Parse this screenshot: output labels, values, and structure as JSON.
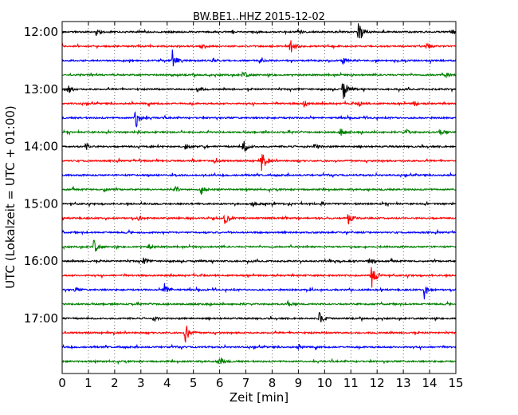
{
  "chart_data": {
    "type": "line",
    "title": "BW.BE1..HHZ 2015-12-02",
    "xlabel": "Zeit  [min]",
    "ylabel": "UTC (Lokalzeit = UTC + 01:00)",
    "xlim": [
      0,
      15
    ],
    "xticks": [
      0,
      1,
      2,
      3,
      4,
      5,
      6,
      7,
      8,
      9,
      10,
      11,
      12,
      13,
      14,
      15
    ],
    "ytick_labels": [
      "12:00",
      "13:00",
      "14:00",
      "15:00",
      "16:00",
      "17:00"
    ],
    "trace_interval_min": 15,
    "grid": "vertical dotted at each minute",
    "trace_colors": [
      "#000000",
      "#ff0000",
      "#0000ff",
      "#008000"
    ],
    "traces": [
      {
        "start": "12:00",
        "events": [
          {
            "t": 11.3,
            "amp": 1.0
          },
          {
            "t": 1.3,
            "amp": 0.25
          },
          {
            "t": 9.0,
            "amp": 0.2
          },
          {
            "t": 14.8,
            "amp": 0.3
          }
        ]
      },
      {
        "start": "12:15",
        "events": [
          {
            "t": 8.7,
            "amp": 0.55
          },
          {
            "t": 5.3,
            "amp": 0.2
          },
          {
            "t": 13.9,
            "amp": 0.25
          }
        ]
      },
      {
        "start": "12:30",
        "events": [
          {
            "t": 4.2,
            "amp": 0.8
          },
          {
            "t": 5.7,
            "amp": 0.2
          },
          {
            "t": 7.5,
            "amp": 0.25
          },
          {
            "t": 10.7,
            "amp": 0.25
          }
        ]
      },
      {
        "start": "12:45",
        "events": [
          {
            "t": 6.9,
            "amp": 0.3
          },
          {
            "t": 14.6,
            "amp": 0.2
          }
        ]
      },
      {
        "start": "13:00",
        "events": [
          {
            "t": 10.7,
            "amp": 1.0
          },
          {
            "t": 0.2,
            "amp": 0.4
          },
          {
            "t": 5.1,
            "amp": 0.3
          }
        ]
      },
      {
        "start": "13:15",
        "events": [
          {
            "t": 9.2,
            "amp": 0.3
          },
          {
            "t": 11.3,
            "amp": 0.2
          },
          {
            "t": 13.4,
            "amp": 0.2
          }
        ]
      },
      {
        "start": "13:30",
        "events": [
          {
            "t": 2.8,
            "amp": 0.95
          }
        ]
      },
      {
        "start": "13:45",
        "events": [
          {
            "t": 10.6,
            "amp": 0.3
          },
          {
            "t": 13.1,
            "amp": 0.2
          },
          {
            "t": 14.4,
            "amp": 0.25
          }
        ]
      },
      {
        "start": "14:00",
        "events": [
          {
            "t": 6.9,
            "amp": 0.6
          },
          {
            "t": 0.9,
            "amp": 0.3
          },
          {
            "t": 4.7,
            "amp": 0.25
          },
          {
            "t": 9.6,
            "amp": 0.3
          }
        ]
      },
      {
        "start": "14:15",
        "events": [
          {
            "t": 7.6,
            "amp": 1.0
          },
          {
            "t": 5.8,
            "amp": 0.2
          }
        ]
      },
      {
        "start": "14:30",
        "events": []
      },
      {
        "start": "14:45",
        "events": [
          {
            "t": 5.3,
            "amp": 0.35
          },
          {
            "t": 4.3,
            "amp": 0.2
          },
          {
            "t": 1.6,
            "amp": 0.15
          }
        ]
      },
      {
        "start": "15:00",
        "events": [
          {
            "t": 7.2,
            "amp": 0.35
          },
          {
            "t": 9.9,
            "amp": 0.15
          }
        ]
      },
      {
        "start": "15:15",
        "events": [
          {
            "t": 6.2,
            "amp": 0.45
          },
          {
            "t": 10.9,
            "amp": 0.55
          },
          {
            "t": 2.9,
            "amp": 0.15
          }
        ]
      },
      {
        "start": "15:30",
        "events": []
      },
      {
        "start": "15:45",
        "events": [
          {
            "t": 1.2,
            "amp": 0.55
          },
          {
            "t": 3.3,
            "amp": 0.2
          }
        ]
      },
      {
        "start": "16:00",
        "events": [
          {
            "t": 3.1,
            "amp": 0.25
          },
          {
            "t": 11.7,
            "amp": 0.25
          }
        ]
      },
      {
        "start": "16:15",
        "events": [
          {
            "t": 11.8,
            "amp": 1.3
          }
        ]
      },
      {
        "start": "16:30",
        "events": [
          {
            "t": 3.9,
            "amp": 0.6
          },
          {
            "t": 13.8,
            "amp": 0.6
          },
          {
            "t": 0.5,
            "amp": 0.15
          }
        ]
      },
      {
        "start": "16:45",
        "events": [
          {
            "t": 8.6,
            "amp": 0.2
          }
        ]
      },
      {
        "start": "17:00",
        "events": [
          {
            "t": 9.8,
            "amp": 0.5
          },
          {
            "t": 3.5,
            "amp": 0.2
          }
        ]
      },
      {
        "start": "17:15",
        "events": [
          {
            "t": 4.7,
            "amp": 0.8
          }
        ]
      },
      {
        "start": "17:30",
        "events": [
          {
            "t": 9.0,
            "amp": 0.15
          }
        ]
      },
      {
        "start": "17:45",
        "events": [
          {
            "t": 6.0,
            "amp": 0.35
          }
        ]
      }
    ]
  }
}
